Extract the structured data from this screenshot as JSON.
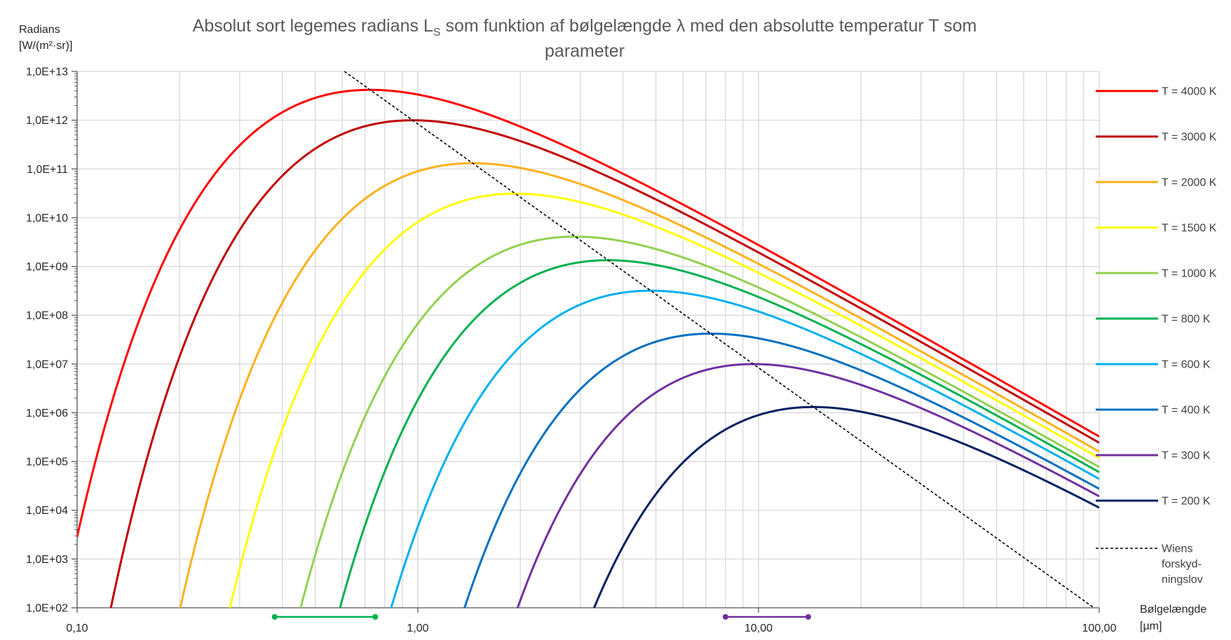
{
  "chart_data": {
    "type": "line",
    "title_main": "Absolut sort legemes radians L",
    "title_sub": "S",
    "title_rest": " som funktion af bølgelængde λ med den absolutte temperatur T som",
    "title_line2": "parameter",
    "ylabel_line1": "Radians",
    "ylabel_line2": "[W/(m²·sr)]",
    "xlabel_line1": "Bølgelængde",
    "xlabel_line2": "[µm]",
    "x_scale": "log",
    "y_scale": "log",
    "xlim": [
      0.1,
      100
    ],
    "ylim": [
      100,
      10000000000000
    ],
    "x_tick_labels": [
      "0,10",
      "1,00",
      "10,00",
      "100,00"
    ],
    "y_tick_labels": [
      "1,0E+02",
      "1,0E+03",
      "1,0E+04",
      "1,0E+05",
      "1,0E+06",
      "1,0E+07",
      "1,0E+08",
      "1,0E+09",
      "1,0E+10",
      "1,0E+11",
      "1,0E+12",
      "1,0E+13"
    ],
    "grid": true,
    "legend_position": "right",
    "series": [
      {
        "name": "T = 4000 K",
        "temperature": 4000,
        "color": "#FF0000"
      },
      {
        "name": "T = 3000 K",
        "temperature": 3000,
        "color": "#C00000"
      },
      {
        "name": "T = 2000 K",
        "temperature": 2000,
        "color": "#FFB11B"
      },
      {
        "name": "T = 1500 K",
        "temperature": 1500,
        "color": "#FFFF00"
      },
      {
        "name": "T = 1000 K",
        "temperature": 1000,
        "color": "#92D050"
      },
      {
        "name": "T = 800 K",
        "temperature": 800,
        "color": "#00B050"
      },
      {
        "name": "T = 600 K",
        "temperature": 600,
        "color": "#00B0F0"
      },
      {
        "name": "T = 400 K",
        "temperature": 400,
        "color": "#0070C0"
      },
      {
        "name": "T = 300 K",
        "temperature": 300,
        "color": "#7030A0"
      },
      {
        "name": "T = 200 K",
        "temperature": 200,
        "color": "#002060"
      }
    ],
    "wien_line": {
      "name_line1": "Wiens",
      "name_line2": "forskyd-",
      "name_line3": "ningslov",
      "color": "#000000"
    },
    "range_markers": [
      {
        "from": 0.38,
        "to": 0.75,
        "color": "#00B050"
      },
      {
        "from": 8,
        "to": 14,
        "color": "#7030A0"
      }
    ]
  }
}
